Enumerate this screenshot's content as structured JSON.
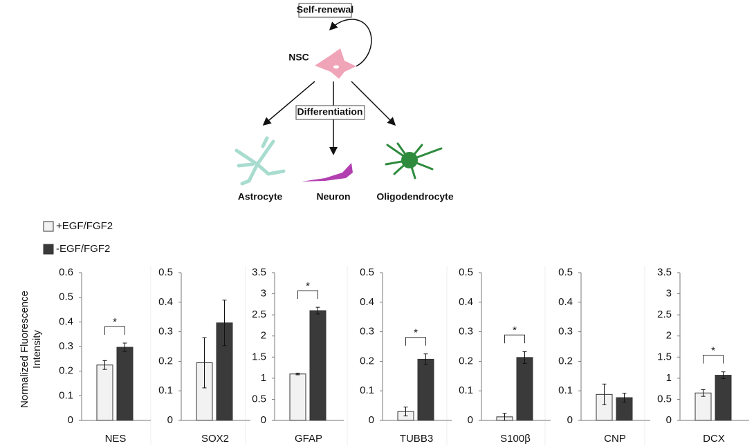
{
  "diagram": {
    "self_renewal": "Self-renewal",
    "stem_cell": "NSC",
    "differentiation": "Differentiation",
    "cells": [
      "Astrocyte",
      "Neuron",
      "Oligodendrocyte"
    ]
  },
  "chart_data": [
    {
      "type": "bar",
      "ylabel": "Normalized Fluorescence Intensity",
      "categories": [
        "NES"
      ],
      "ylim": [
        0,
        0.6
      ],
      "yticks": [
        0,
        0.1,
        0.2,
        0.3,
        0.4,
        0.5,
        0.6
      ],
      "series": [
        {
          "name": "+EGF/FGF2",
          "color": "#f2f2f2",
          "values": [
            0.225
          ],
          "errors": [
            0.018
          ]
        },
        {
          "name": "-EGF/FGF2",
          "color": "#3a3a3a",
          "values": [
            0.297
          ],
          "errors": [
            0.017
          ]
        }
      ],
      "annotations": [
        "*"
      ]
    },
    {
      "type": "bar",
      "categories": [
        "SOX2"
      ],
      "ylim": [
        0,
        0.5
      ],
      "yticks": [
        0,
        0.1,
        0.2,
        0.3,
        0.4,
        0.5
      ],
      "series": [
        {
          "color": "#f2f2f2",
          "values": [
            0.195
          ],
          "errors": [
            0.085
          ]
        },
        {
          "color": "#3a3a3a",
          "values": [
            0.33
          ],
          "errors": [
            0.077
          ]
        }
      ]
    },
    {
      "type": "bar",
      "categories": [
        "GFAP"
      ],
      "ylim": [
        0,
        3.5
      ],
      "yticks": [
        0,
        0.5,
        1,
        1.5,
        2,
        2.5,
        3,
        3.5
      ],
      "series": [
        {
          "color": "#f2f2f2",
          "values": [
            1.1
          ],
          "errors": [
            0.02
          ]
        },
        {
          "color": "#3a3a3a",
          "values": [
            2.6
          ],
          "errors": [
            0.08
          ]
        }
      ],
      "annotations": [
        "*"
      ]
    },
    {
      "type": "bar",
      "categories": [
        "TUBB3"
      ],
      "ylim": [
        0,
        0.5
      ],
      "yticks": [
        0,
        0.1,
        0.2,
        0.3,
        0.4,
        0.5
      ],
      "series": [
        {
          "color": "#f2f2f2",
          "values": [
            0.03
          ],
          "errors": [
            0.015
          ]
        },
        {
          "color": "#3a3a3a",
          "values": [
            0.207
          ],
          "errors": [
            0.018
          ]
        }
      ],
      "annotations": [
        "*"
      ]
    },
    {
      "type": "bar",
      "categories": [
        "S100β"
      ],
      "ylim": [
        0,
        0.5
      ],
      "yticks": [
        0,
        0.1,
        0.2,
        0.3,
        0.4,
        0.5
      ],
      "series": [
        {
          "color": "#f2f2f2",
          "values": [
            0.012
          ],
          "errors": [
            0.012
          ]
        },
        {
          "color": "#3a3a3a",
          "values": [
            0.213
          ],
          "errors": [
            0.02
          ]
        }
      ],
      "annotations": [
        "*"
      ]
    },
    {
      "type": "bar",
      "categories": [
        "CNP"
      ],
      "ylim": [
        0,
        0.5
      ],
      "yticks": [
        0,
        0.1,
        0.2,
        0.3,
        0.4,
        0.5
      ],
      "series": [
        {
          "color": "#f2f2f2",
          "values": [
            0.088
          ],
          "errors": [
            0.035
          ]
        },
        {
          "color": "#3a3a3a",
          "values": [
            0.077
          ],
          "errors": [
            0.015
          ]
        }
      ]
    },
    {
      "type": "bar",
      "categories": [
        "DCX"
      ],
      "ylim": [
        0,
        3.5
      ],
      "yticks": [
        0,
        0.5,
        1,
        1.5,
        2,
        2.5,
        3,
        3.5
      ],
      "series": [
        {
          "color": "#f2f2f2",
          "values": [
            0.65
          ],
          "errors": [
            0.08
          ]
        },
        {
          "color": "#3a3a3a",
          "values": [
            1.07
          ],
          "errors": [
            0.08
          ]
        }
      ],
      "annotations": [
        "*"
      ]
    }
  ]
}
